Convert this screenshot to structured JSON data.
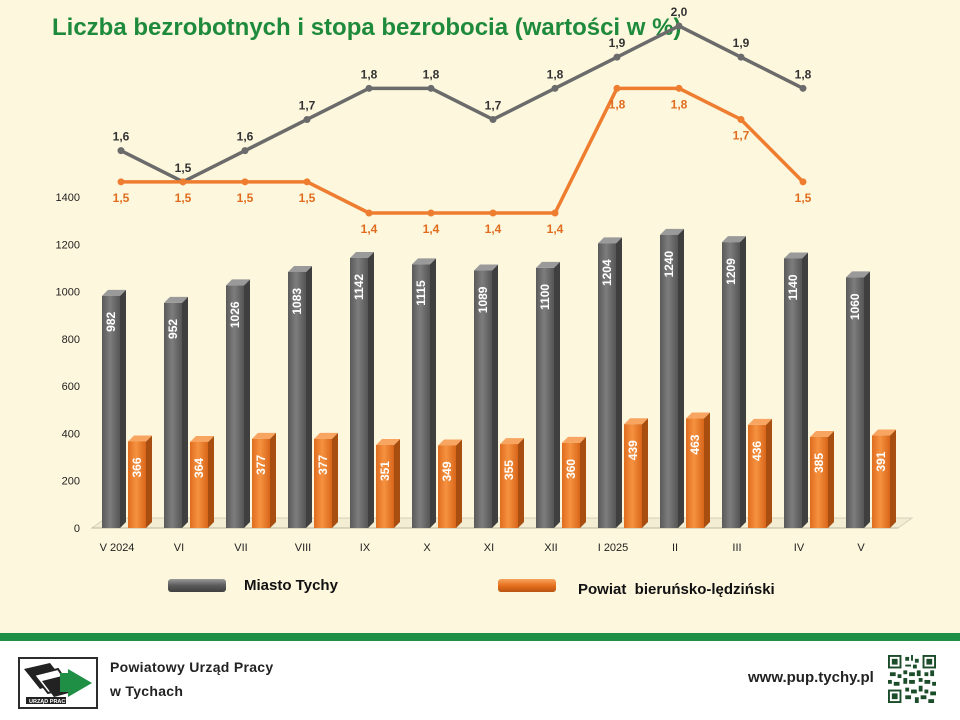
{
  "title": "Liczba bezrobotnych i stopa bezrobocia (wartości w %)",
  "chart_data": {
    "type": "bar",
    "categories": [
      "V 2024",
      "VI",
      "VII",
      "VIII",
      "IX",
      "X",
      "XI",
      "XII",
      "I 2025",
      "II",
      "III",
      "IV",
      "V"
    ],
    "ylim": [
      0,
      1400
    ],
    "yticks": [
      0,
      200,
      400,
      600,
      800,
      1000,
      1200,
      1400
    ],
    "series": [
      {
        "name": "Miasto Tychy",
        "values": [
          982,
          952,
          1026,
          1083,
          1142,
          1115,
          1089,
          1100,
          1204,
          1240,
          1209,
          1140,
          1060
        ],
        "color": "#6b6b6b"
      },
      {
        "name": "Powiat bieruńsko-lędziński",
        "values": [
          366,
          364,
          377,
          377,
          351,
          349,
          355,
          360,
          439,
          463,
          436,
          385,
          391
        ],
        "color": "#ee7d30"
      }
    ],
    "rate_series": [
      {
        "name": "Miasto Tychy",
        "labels": [
          "1,6",
          "1,5",
          "1,6",
          "1,7",
          "1,8",
          "1,8",
          "1,7",
          "1,8",
          "1,9",
          "2,0",
          "1,9",
          "1,8"
        ],
        "values": [
          1.6,
          1.5,
          1.6,
          1.7,
          1.8,
          1.8,
          1.7,
          1.8,
          1.9,
          2.0,
          1.9,
          1.8
        ],
        "color": "#6b6b6b"
      },
      {
        "name": "Powiat bieruńsko-lędziński",
        "labels": [
          "1,5",
          "1,5",
          "1,5",
          "1,5",
          "1,4",
          "1,4",
          "1,4",
          "1,4",
          "1,8",
          "1,8",
          "1,7",
          "1,5"
        ],
        "values": [
          1.5,
          1.5,
          1.5,
          1.5,
          1.4,
          1.4,
          1.4,
          1.4,
          1.8,
          1.8,
          1.7,
          1.5
        ],
        "color": "#ee7d30"
      }
    ],
    "legend": [
      "Miasto Tychy",
      "Powiat  bieruńsko-lędziński"
    ],
    "legend_position": "bottom"
  },
  "footer": {
    "org_line1": "Powiatowy Urząd Pracy",
    "org_line2": "w Tychach",
    "logo_text": "URZĄD PRACY",
    "url": "www.pup.tychy.pl"
  },
  "colors": {
    "title": "#1e8a3c",
    "band": "#1f8f45",
    "background": "#fdf7dd"
  }
}
